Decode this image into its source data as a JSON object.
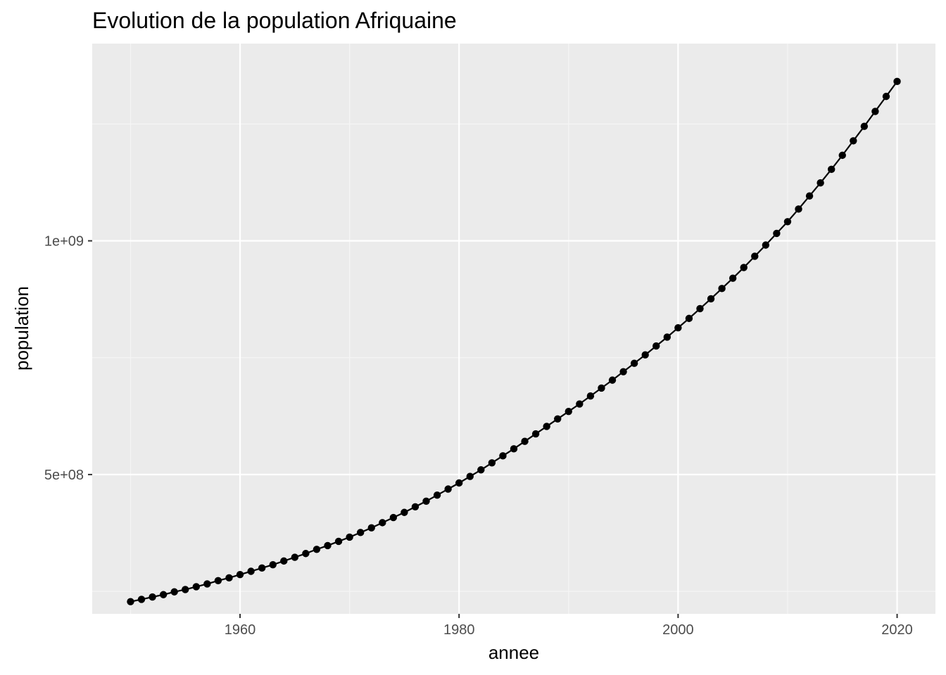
{
  "chart_data": {
    "type": "line",
    "title": "Evolution de la population Afriquaine",
    "xlabel": "annee",
    "ylabel": "population",
    "xlim": [
      1946.5,
      2023.5
    ],
    "ylim": [
      202000000,
      1422000000
    ],
    "x_ticks": [
      1960,
      1980,
      2000,
      2020
    ],
    "x_tick_labels": [
      "1960",
      "1980",
      "2000",
      "2020"
    ],
    "y_ticks": [
      500000000,
      1000000000
    ],
    "y_tick_labels": [
      "5e+08",
      "1e+09"
    ],
    "grid": true,
    "legend": "none",
    "series": [
      {
        "x": [
          1950,
          1951,
          1952,
          1953,
          1954,
          1955,
          1956,
          1957,
          1958,
          1959,
          1960,
          1961,
          1962,
          1963,
          1964,
          1965,
          1966,
          1967,
          1968,
          1969,
          1970,
          1971,
          1972,
          1973,
          1974,
          1975,
          1976,
          1977,
          1978,
          1979,
          1980,
          1981,
          1982,
          1983,
          1984,
          1985,
          1986,
          1987,
          1988,
          1989,
          1990,
          1991,
          1992,
          1993,
          1994,
          1995,
          1996,
          1997,
          1998,
          1999,
          2000,
          2001,
          2002,
          2003,
          2004,
          2005,
          2006,
          2007,
          2008,
          2009,
          2010,
          2011,
          2012,
          2013,
          2014,
          2015,
          2016,
          2017,
          2018,
          2019,
          2020
        ],
        "values": [
          228000000,
          233000000,
          238000000,
          243000000,
          249000000,
          254000000,
          260000000,
          266000000,
          273000000,
          279000000,
          286000000,
          293000000,
          300000000,
          307000000,
          315000000,
          323000000,
          331000000,
          340000000,
          348000000,
          357000000,
          366000000,
          376000000,
          386000000,
          397000000,
          408000000,
          419000000,
          431000000,
          443000000,
          456000000,
          469000000,
          482000000,
          496000000,
          510000000,
          525000000,
          540000000,
          555000000,
          571000000,
          587000000,
          603000000,
          619000000,
          635000000,
          651000000,
          668000000,
          685000000,
          702000000,
          720000000,
          738000000,
          756000000,
          775000000,
          794000000,
          814000000,
          834000000,
          855000000,
          876000000,
          898000000,
          920000000,
          943000000,
          967000000,
          991000000,
          1016000000,
          1041000000,
          1068000000,
          1096000000,
          1124000000,
          1153000000,
          1183000000,
          1214000000,
          1245000000,
          1277000000,
          1309000000,
          1341000000
        ],
        "color": "#000000"
      }
    ],
    "colors": {
      "panel_background": "#ebebeb",
      "grid_major": "#ffffff",
      "grid_minor": "#f5f5f5",
      "tick_text": "#4d4d4d",
      "line": "#000000"
    }
  }
}
